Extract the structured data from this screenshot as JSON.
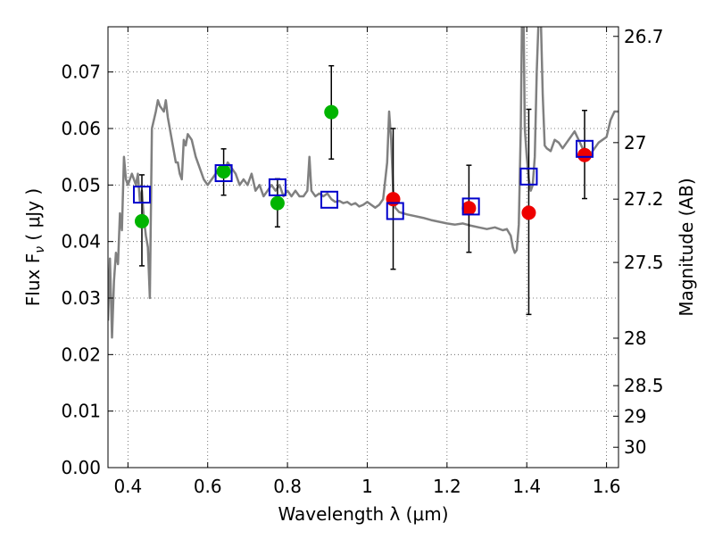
{
  "chart_data": {
    "type": "scatter",
    "xlabel": "Wavelength  λ (μm)",
    "ylabel": "Flux  F",
    "ylabel_sub": "ν",
    "ylabel_unit": "  ( μJy )",
    "y2label": "Magnitude (AB)",
    "xlim": [
      0.35,
      1.63
    ],
    "ylim": [
      0.0,
      0.078
    ],
    "grid": true,
    "x_ticks": [
      {
        "value": 0.4,
        "label": "0.4"
      },
      {
        "value": 0.6,
        "label": "0.6"
      },
      {
        "value": 0.8,
        "label": "0.8"
      },
      {
        "value": 1.0,
        "label": "1"
      },
      {
        "value": 1.2,
        "label": "1.2"
      },
      {
        "value": 1.4,
        "label": "1.4"
      },
      {
        "value": 1.6,
        "label": "1.6"
      }
    ],
    "y_ticks": [
      {
        "value": 0.0,
        "label": "0.00"
      },
      {
        "value": 0.01,
        "label": "0.01"
      },
      {
        "value": 0.02,
        "label": "0.02"
      },
      {
        "value": 0.03,
        "label": "0.03"
      },
      {
        "value": 0.04,
        "label": "0.04"
      },
      {
        "value": 0.05,
        "label": "0.05"
      },
      {
        "value": 0.06,
        "label": "0.06"
      },
      {
        "value": 0.07,
        "label": "0.07"
      }
    ],
    "y2_ticks": [
      {
        "flux": 0.0763,
        "label": "26.7"
      },
      {
        "flux": 0.0575,
        "label": "27"
      },
      {
        "flux": 0.0475,
        "label": "27.2"
      },
      {
        "flux": 0.0363,
        "label": "27.5"
      },
      {
        "flux": 0.0229,
        "label": "28"
      },
      {
        "flux": 0.0145,
        "label": "28.5"
      },
      {
        "flux": 0.0091,
        "label": "29"
      },
      {
        "flux": 0.0036,
        "label": "30"
      }
    ],
    "colors": {
      "sed": "#808080",
      "green": "#00b400",
      "red": "#ee0000",
      "model": "#0000cc",
      "errorbar": "#000000",
      "grid": "#555555"
    },
    "model_points": [
      {
        "x": 0.435,
        "y": 0.0483
      },
      {
        "x": 0.64,
        "y": 0.0521
      },
      {
        "x": 0.775,
        "y": 0.0496
      },
      {
        "x": 0.905,
        "y": 0.0474
      },
      {
        "x": 1.07,
        "y": 0.0454
      },
      {
        "x": 1.26,
        "y": 0.0462
      },
      {
        "x": 1.405,
        "y": 0.0515
      },
      {
        "x": 1.545,
        "y": 0.0564
      }
    ],
    "observed_points": [
      {
        "x": 0.435,
        "y": 0.0436,
        "ylo": 0.0357,
        "yhi": 0.0518,
        "color": "green"
      },
      {
        "x": 0.64,
        "y": 0.0524,
        "ylo": 0.0482,
        "yhi": 0.0564,
        "color": "green"
      },
      {
        "x": 0.775,
        "y": 0.0468,
        "ylo": 0.0426,
        "yhi": 0.0511,
        "color": "green"
      },
      {
        "x": 0.91,
        "y": 0.0629,
        "ylo": 0.0546,
        "yhi": 0.0711,
        "color": "green"
      },
      {
        "x": 1.065,
        "y": 0.0475,
        "ylo": 0.0351,
        "yhi": 0.06,
        "color": "red"
      },
      {
        "x": 1.255,
        "y": 0.0459,
        "ylo": 0.0381,
        "yhi": 0.0535,
        "color": "red"
      },
      {
        "x": 1.405,
        "y": 0.0451,
        "ylo": 0.0271,
        "yhi": 0.0634,
        "color": "red"
      },
      {
        "x": 1.545,
        "y": 0.0553,
        "ylo": 0.0476,
        "yhi": 0.0632,
        "color": "red"
      }
    ],
    "sed_curve": [
      [
        0.35,
        0.026
      ],
      [
        0.355,
        0.037
      ],
      [
        0.36,
        0.023
      ],
      [
        0.365,
        0.033
      ],
      [
        0.37,
        0.038
      ],
      [
        0.375,
        0.036
      ],
      [
        0.38,
        0.045
      ],
      [
        0.385,
        0.042
      ],
      [
        0.39,
        0.055
      ],
      [
        0.395,
        0.051
      ],
      [
        0.4,
        0.05
      ],
      [
        0.41,
        0.052
      ],
      [
        0.42,
        0.05
      ],
      [
        0.425,
        0.052
      ],
      [
        0.43,
        0.047
      ],
      [
        0.435,
        0.049
      ],
      [
        0.44,
        0.044
      ],
      [
        0.445,
        0.041
      ],
      [
        0.45,
        0.039
      ],
      [
        0.455,
        0.03
      ],
      [
        0.46,
        0.06
      ],
      [
        0.47,
        0.063
      ],
      [
        0.475,
        0.065
      ],
      [
        0.48,
        0.064
      ],
      [
        0.49,
        0.063
      ],
      [
        0.495,
        0.065
      ],
      [
        0.5,
        0.062
      ],
      [
        0.51,
        0.058
      ],
      [
        0.52,
        0.054
      ],
      [
        0.525,
        0.054
      ],
      [
        0.53,
        0.052
      ],
      [
        0.535,
        0.051
      ],
      [
        0.54,
        0.058
      ],
      [
        0.545,
        0.057
      ],
      [
        0.55,
        0.059
      ],
      [
        0.56,
        0.058
      ],
      [
        0.57,
        0.055
      ],
      [
        0.58,
        0.053
      ],
      [
        0.59,
        0.051
      ],
      [
        0.6,
        0.05
      ],
      [
        0.61,
        0.051
      ],
      [
        0.62,
        0.052
      ],
      [
        0.63,
        0.053
      ],
      [
        0.64,
        0.052
      ],
      [
        0.65,
        0.054
      ],
      [
        0.66,
        0.053
      ],
      [
        0.67,
        0.052
      ],
      [
        0.68,
        0.05
      ],
      [
        0.69,
        0.051
      ],
      [
        0.7,
        0.05
      ],
      [
        0.71,
        0.052
      ],
      [
        0.72,
        0.049
      ],
      [
        0.73,
        0.05
      ],
      [
        0.74,
        0.048
      ],
      [
        0.75,
        0.049
      ],
      [
        0.76,
        0.05
      ],
      [
        0.77,
        0.049
      ],
      [
        0.78,
        0.05
      ],
      [
        0.79,
        0.048
      ],
      [
        0.8,
        0.049
      ],
      [
        0.81,
        0.048
      ],
      [
        0.82,
        0.049
      ],
      [
        0.83,
        0.048
      ],
      [
        0.84,
        0.048
      ],
      [
        0.85,
        0.049
      ],
      [
        0.855,
        0.055
      ],
      [
        0.86,
        0.049
      ],
      [
        0.87,
        0.048
      ],
      [
        0.88,
        0.0485
      ],
      [
        0.89,
        0.048
      ],
      [
        0.9,
        0.0485
      ],
      [
        0.91,
        0.0475
      ],
      [
        0.92,
        0.047
      ],
      [
        0.93,
        0.0472
      ],
      [
        0.94,
        0.0468
      ],
      [
        0.95,
        0.047
      ],
      [
        0.96,
        0.0465
      ],
      [
        0.97,
        0.0468
      ],
      [
        0.98,
        0.0462
      ],
      [
        0.99,
        0.0465
      ],
      [
        1.0,
        0.047
      ],
      [
        1.01,
        0.0465
      ],
      [
        1.02,
        0.046
      ],
      [
        1.03,
        0.0465
      ],
      [
        1.04,
        0.0475
      ],
      [
        1.05,
        0.054
      ],
      [
        1.055,
        0.063
      ],
      [
        1.06,
        0.058
      ],
      [
        1.065,
        0.049
      ],
      [
        1.07,
        0.046
      ],
      [
        1.08,
        0.0452
      ],
      [
        1.09,
        0.045
      ],
      [
        1.1,
        0.0448
      ],
      [
        1.12,
        0.0445
      ],
      [
        1.14,
        0.0442
      ],
      [
        1.16,
        0.0438
      ],
      [
        1.18,
        0.0435
      ],
      [
        1.2,
        0.0432
      ],
      [
        1.22,
        0.043
      ],
      [
        1.24,
        0.0432
      ],
      [
        1.26,
        0.0428
      ],
      [
        1.28,
        0.0425
      ],
      [
        1.3,
        0.0422
      ],
      [
        1.32,
        0.0425
      ],
      [
        1.34,
        0.042
      ],
      [
        1.35,
        0.0422
      ],
      [
        1.36,
        0.041
      ],
      [
        1.365,
        0.039
      ],
      [
        1.37,
        0.038
      ],
      [
        1.375,
        0.0385
      ],
      [
        1.38,
        0.043
      ],
      [
        1.385,
        0.06
      ],
      [
        1.388,
        0.08
      ],
      [
        1.392,
        0.08
      ],
      [
        1.395,
        0.06
      ],
      [
        1.4,
        0.055
      ],
      [
        1.405,
        0.051
      ],
      [
        1.41,
        0.049
      ],
      [
        1.415,
        0.05
      ],
      [
        1.42,
        0.055
      ],
      [
        1.425,
        0.07
      ],
      [
        1.43,
        0.08
      ],
      [
        1.435,
        0.08
      ],
      [
        1.44,
        0.066
      ],
      [
        1.445,
        0.057
      ],
      [
        1.45,
        0.0565
      ],
      [
        1.46,
        0.056
      ],
      [
        1.47,
        0.058
      ],
      [
        1.48,
        0.0575
      ],
      [
        1.49,
        0.0565
      ],
      [
        1.5,
        0.0575
      ],
      [
        1.51,
        0.0585
      ],
      [
        1.52,
        0.0595
      ],
      [
        1.53,
        0.058
      ],
      [
        1.54,
        0.0565
      ],
      [
        1.55,
        0.056
      ],
      [
        1.56,
        0.0555
      ],
      [
        1.57,
        0.0565
      ],
      [
        1.58,
        0.0575
      ],
      [
        1.59,
        0.058
      ],
      [
        1.6,
        0.0585
      ],
      [
        1.61,
        0.0615
      ],
      [
        1.62,
        0.063
      ],
      [
        1.63,
        0.063
      ]
    ]
  }
}
